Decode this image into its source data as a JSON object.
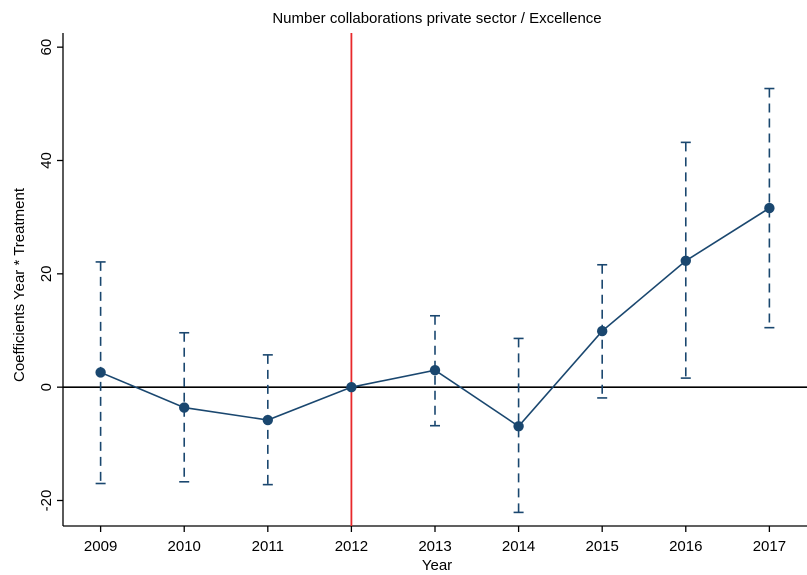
{
  "chart_data": {
    "type": "line",
    "title": "Number collaborations private sector /  Excellence",
    "xlabel": "Year",
    "ylabel": "Coefficients Year * Treatment",
    "xlim": [
      2008.55,
      2017.45
    ],
    "ylim": [
      -24.5,
      62.5
    ],
    "x_ticks": [
      2009,
      2010,
      2011,
      2012,
      2013,
      2014,
      2015,
      2016,
      2017
    ],
    "y_ticks": [
      -20,
      0,
      20,
      40,
      60
    ],
    "grid": false,
    "reference_lines": {
      "horizontal_y": 0,
      "vertical_x": 2012
    },
    "series": [
      {
        "x": [
          2009,
          2010,
          2011,
          2012,
          2013,
          2014,
          2015,
          2016,
          2017
        ],
        "y": [
          2.6,
          -3.6,
          -5.8,
          0,
          3.0,
          -6.9,
          9.9,
          22.3,
          31.6
        ],
        "ci_low": [
          -17.0,
          -16.7,
          -17.2,
          0,
          -6.8,
          -22.1,
          -1.9,
          1.6,
          10.5
        ],
        "ci_high": [
          22.1,
          9.6,
          5.7,
          0,
          12.6,
          8.6,
          21.6,
          43.2,
          52.7
        ]
      }
    ],
    "colors": {
      "series": "#1a476f",
      "vertical_line": "#e8292b",
      "zero_line": "#000000",
      "axis": "#000000"
    }
  }
}
